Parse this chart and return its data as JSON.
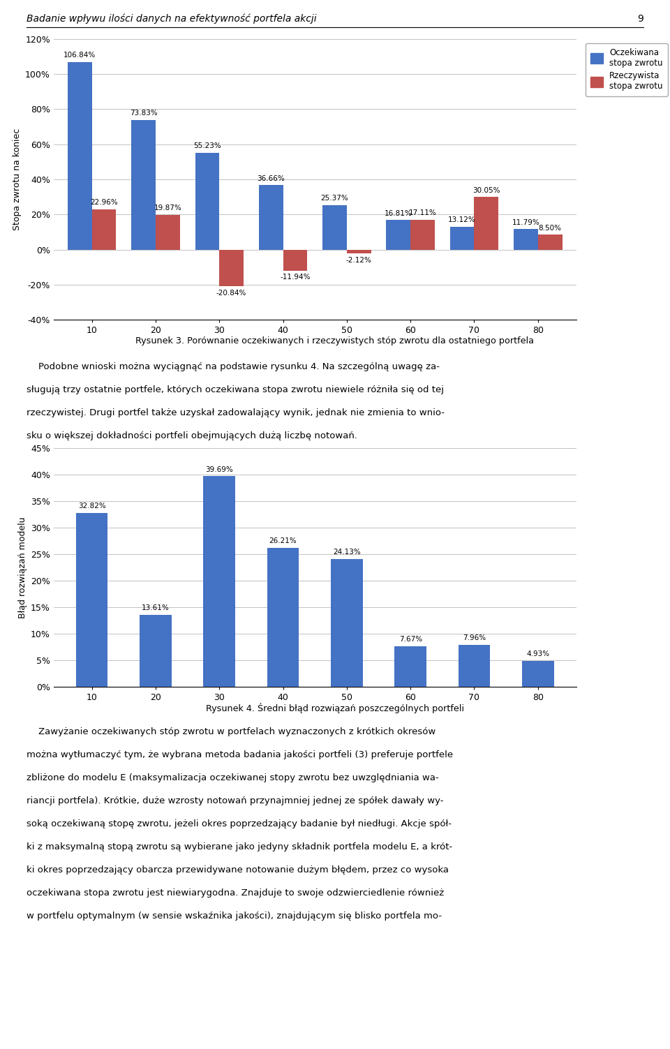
{
  "chart1": {
    "categories": [
      10,
      20,
      30,
      40,
      50,
      60,
      70,
      80
    ],
    "expected": [
      106.84,
      73.83,
      55.23,
      36.66,
      25.37,
      16.81,
      13.12,
      11.79
    ],
    "actual": [
      22.96,
      19.87,
      -20.84,
      -11.94,
      -2.12,
      17.11,
      30.05,
      8.5
    ],
    "bar_color_expected": "#4472C4",
    "bar_color_actual": "#C0504D",
    "ylabel": "Stopa zwrotu na koniec",
    "ylim": [
      -40,
      120
    ],
    "yticks": [
      -40,
      -20,
      0,
      20,
      40,
      60,
      80,
      100,
      120
    ],
    "ytick_labels": [
      "-40%",
      "-20%",
      "0%",
      "20%",
      "40%",
      "60%",
      "80%",
      "100%",
      "120%"
    ],
    "legend_expected": "Oczekiwana\nstopa zwrotu",
    "legend_actual": "Rzeczywista\nstopa zwrotu",
    "caption": "Rysunek 3. Porównanie oczekiwanych i rzeczywistych stóp zwrotu dla ostatniego portfela"
  },
  "chart2": {
    "categories": [
      10,
      20,
      30,
      40,
      50,
      60,
      70,
      80
    ],
    "values": [
      32.82,
      13.61,
      39.69,
      26.21,
      24.13,
      7.67,
      7.96,
      4.93
    ],
    "bar_color": "#4472C4",
    "ylabel": "Błąd rozwiązań modelu",
    "ylim": [
      0,
      45
    ],
    "yticks": [
      0,
      5,
      10,
      15,
      20,
      25,
      30,
      35,
      40,
      45
    ],
    "ytick_labels": [
      "0%",
      "5%",
      "10%",
      "15%",
      "20%",
      "25%",
      "30%",
      "35%",
      "40%",
      "45%"
    ],
    "caption": "Rysunek 4. Średnni błąd rozwiązań poszczególnych portfeli"
  },
  "header_title": "Badanie wpływu ilości danych na efektywność portfela akcji",
  "header_page": "9"
}
